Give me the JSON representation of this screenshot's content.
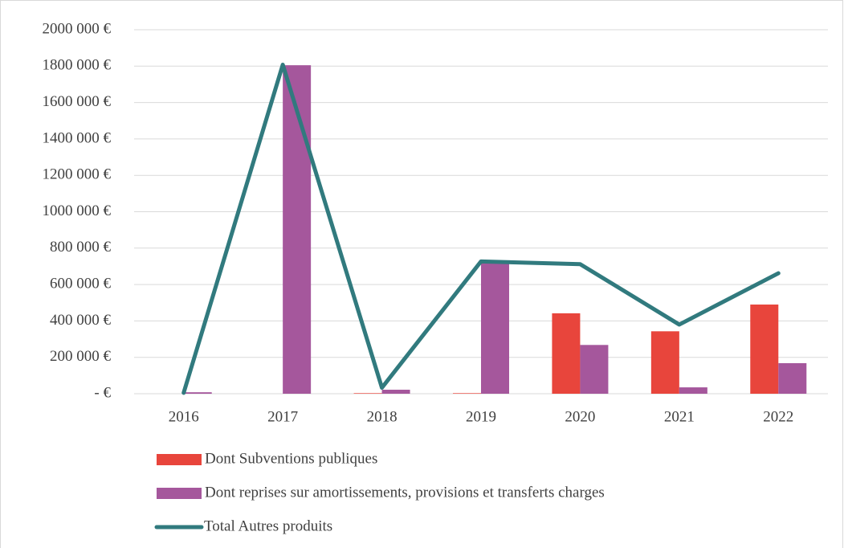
{
  "chart_data": {
    "type": "bar-line",
    "categories": [
      "2016",
      "2017",
      "2018",
      "2019",
      "2020",
      "2021",
      "2022"
    ],
    "series": [
      {
        "name": "Dont Subventions publiques",
        "type": "bar",
        "color": "#e8453c",
        "values": [
          0,
          0,
          3000,
          3000,
          442000,
          343000,
          490000
        ]
      },
      {
        "name": "Dont reprises sur amortissements, provisions et transferts charges",
        "type": "bar",
        "color": "#a5579c",
        "values": [
          8000,
          1805000,
          22000,
          718000,
          268000,
          35000,
          168000
        ]
      },
      {
        "name": "Total Autres produits",
        "type": "line",
        "color": "#317a7e",
        "values": [
          5000,
          1808000,
          33000,
          727000,
          712000,
          380000,
          662000
        ]
      }
    ],
    "ylim": [
      0,
      2000000
    ],
    "yticks": [
      {
        "value": 0,
        "label": "-  €"
      },
      {
        "value": 200000,
        "label": "200 000 €"
      },
      {
        "value": 400000,
        "label": "400 000 €"
      },
      {
        "value": 600000,
        "label": "600 000 €"
      },
      {
        "value": 800000,
        "label": "800 000 €"
      },
      {
        "value": 1000000,
        "label": "1000 000 €"
      },
      {
        "value": 1200000,
        "label": "1200 000 €"
      },
      {
        "value": 1400000,
        "label": "1400 000 €"
      },
      {
        "value": 1600000,
        "label": "1600 000 €"
      },
      {
        "value": 1800000,
        "label": "1800 000 €"
      },
      {
        "value": 2000000,
        "label": "2000 000 €"
      }
    ],
    "grid": true,
    "legend": "bottom"
  }
}
